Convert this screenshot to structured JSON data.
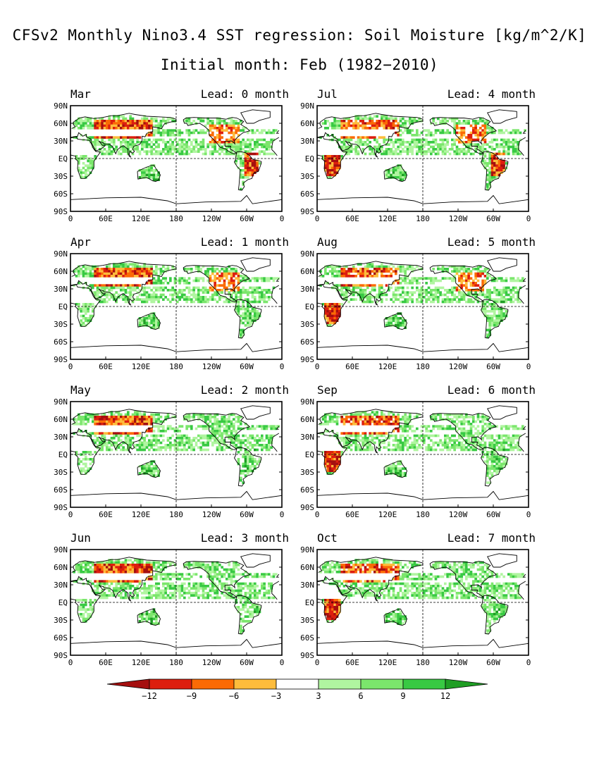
{
  "title": "CFSv2 Monthly Nino3.4 SST regression: Soil Moisture [kg/m^2/K]",
  "subtitle": "Initial month: Feb (1982−2010)",
  "chart_data": {
    "type": "heatmap",
    "lead_label_template": "Lead: {n} month",
    "panels": [
      {
        "month": "Mar",
        "lead": "Lead: 0 month"
      },
      {
        "month": "Jul",
        "lead": "Lead: 4 month"
      },
      {
        "month": "Apr",
        "lead": "Lead: 1 month"
      },
      {
        "month": "Aug",
        "lead": "Lead: 5 month"
      },
      {
        "month": "May",
        "lead": "Lead: 2 month"
      },
      {
        "month": "Sep",
        "lead": "Lead: 6 month"
      },
      {
        "month": "Jun",
        "lead": "Lead: 3 month"
      },
      {
        "month": "Oct",
        "lead": "Lead: 7 month"
      }
    ],
    "y_ticks": [
      "90N",
      "60N",
      "30N",
      "EQ",
      "30S",
      "60S",
      "90S"
    ],
    "x_ticks": [
      "0",
      "60E",
      "120E",
      "180",
      "120W",
      "60W",
      "0"
    ],
    "lat_range": [
      -90,
      90
    ],
    "lon_range": [
      0,
      360
    ],
    "gridlines": "dashed at EQ and 180",
    "colorbar": {
      "levels": [
        -12,
        -9,
        -6,
        -3,
        3,
        6,
        9,
        12
      ],
      "labels": [
        "−12",
        "−9",
        "−6",
        "−3",
        "3",
        "6",
        "9",
        "12"
      ],
      "colors": [
        "#a50f0f",
        "#dd1e0e",
        "#fb6a05",
        "#fdbc3c",
        "#ffffff",
        "#b0f5a0",
        "#7be66c",
        "#38c943",
        "#1f9e24"
      ]
    }
  }
}
